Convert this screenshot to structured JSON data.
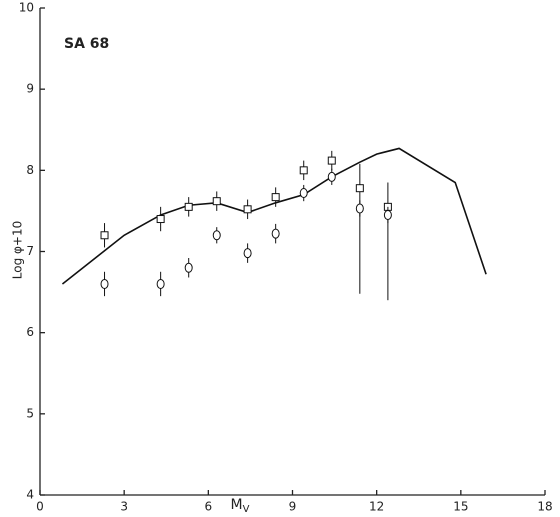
{
  "chart_data": {
    "type": "line",
    "annotation": "SA 68",
    "y_label": "Log φ+10",
    "x_label": "M",
    "x_label_sub": "V",
    "xlim": [
      0,
      18
    ],
    "xticks": [
      0,
      3,
      6,
      9,
      12,
      15,
      18
    ],
    "ylim": [
      4,
      10
    ],
    "yticks": [
      4,
      5,
      6,
      7,
      8,
      9,
      10
    ],
    "color": "#111",
    "line": {
      "x": [
        0.8,
        3,
        4.3,
        5.3,
        6.3,
        7.4,
        8.4,
        9.4,
        10.4,
        11.4,
        12,
        12.8,
        14.8,
        15.9
      ],
      "values": [
        6.6,
        7.2,
        7.45,
        7.57,
        7.6,
        7.48,
        7.6,
        7.7,
        7.92,
        8.1,
        8.2,
        8.27,
        7.85,
        6.72
      ]
    },
    "series": [
      {
        "marker": "square",
        "x": [
          2.3,
          4.3,
          5.3,
          6.3,
          7.4,
          8.4,
          9.4,
          10.4,
          11.4,
          12.4
        ],
        "values": [
          7.2,
          7.4,
          7.55,
          7.62,
          7.52,
          7.67,
          8.0,
          8.12,
          7.78,
          7.55
        ],
        "errors": [
          [
            0.15,
            0.15
          ],
          [
            0.15,
            0.15
          ],
          [
            0.12,
            0.12
          ],
          [
            0.12,
            0.12
          ],
          [
            0.12,
            0.12
          ],
          [
            0.12,
            0.12
          ],
          [
            0.12,
            0.12
          ],
          [
            0.12,
            0.12
          ],
          [
            1.3,
            0.3
          ],
          [
            1.15,
            0.3
          ]
        ]
      },
      {
        "marker": "circle",
        "x": [
          2.3,
          4.3,
          5.3,
          6.3,
          7.4,
          8.4,
          9.4,
          10.4,
          11.4,
          12.4
        ],
        "values": [
          6.6,
          6.6,
          6.8,
          7.2,
          6.98,
          7.22,
          7.72,
          7.92,
          7.53,
          7.45
        ],
        "errors": [
          [
            0.15,
            0.15
          ],
          [
            0.15,
            0.15
          ],
          [
            0.12,
            0.12
          ],
          [
            0.1,
            0.1
          ],
          [
            0.12,
            0.12
          ],
          [
            0.12,
            0.12
          ],
          [
            0.1,
            0.1
          ],
          [
            0.1,
            0.1
          ],
          [
            0.1,
            0.1
          ],
          [
            0.1,
            0.1
          ]
        ]
      }
    ]
  }
}
